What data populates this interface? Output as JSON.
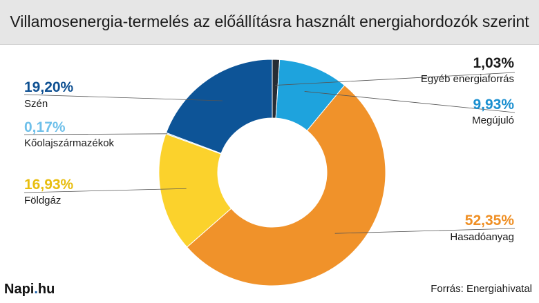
{
  "header": {
    "title": "Villamosenergia-termelés az előállításra használt energiahordozók szerint"
  },
  "chart_data": {
    "type": "pie",
    "style": "donut",
    "title": "Villamosenergia-termelés az előállításra használt energiahordozók szerint",
    "categories": [
      "Egyéb energiaforrás",
      "Megújuló",
      "Hasadóanyag",
      "Földgáz",
      "Kőolajszármazékok",
      "Szén"
    ],
    "values": [
      1.03,
      9.93,
      52.35,
      16.93,
      0.17,
      19.2
    ],
    "value_labels": [
      "1,03%",
      "9,93%",
      "52,35%",
      "16,93%",
      "0,17%",
      "19,20%"
    ],
    "colors": [
      "#262d35",
      "#1ea3dd",
      "#f0922a",
      "#fbd22c",
      "#a6d4ef",
      "#0d5497"
    ],
    "label_colors": [
      "#1a1a1a",
      "#1a8fd0",
      "#ef8f24",
      "#e8be10",
      "#6fc0ea",
      "#0d4f91"
    ],
    "start_angle": "top, clockwise"
  },
  "footer": {
    "brand_main": "Napi",
    "brand_sep": ".",
    "brand_tld": "hu",
    "source": "Forrás: Energiahivatal"
  }
}
